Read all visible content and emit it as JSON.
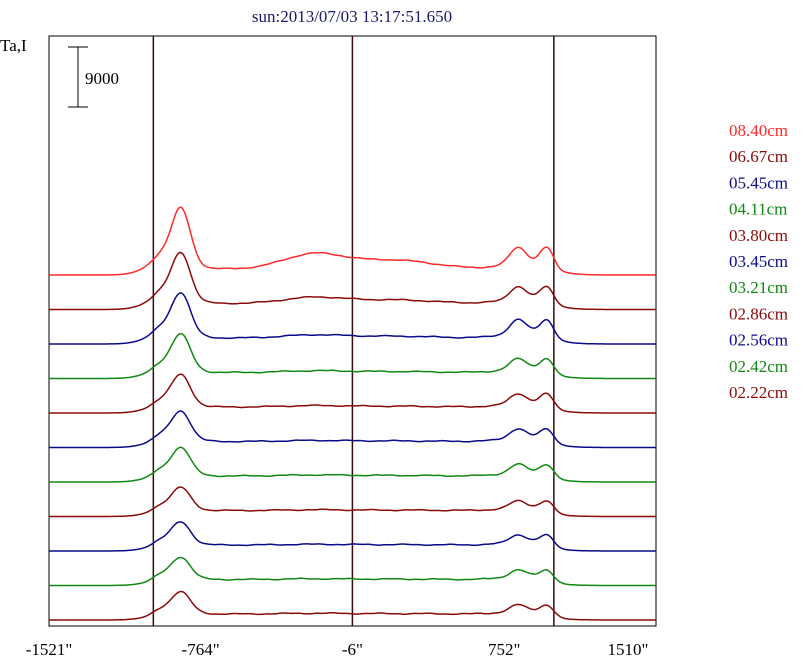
{
  "chart_data": {
    "type": "line",
    "title": "sun:2013/07/03 13:17:51.650",
    "ylabel": "Ta,I",
    "xlabel": "",
    "xlim": [
      -1521,
      1510
    ],
    "x_ticks": [
      "-1521\"",
      "-764\"",
      "-6\"",
      "752\"",
      "1510\""
    ],
    "vertical_lines": [
      -1000,
      -6,
      1000
    ],
    "scale_bar_label": "9000",
    "grid": false,
    "legend_placement": "right",
    "series": [
      {
        "name": "08.40cm",
        "color": "#ff2a2a",
        "peak_left": 9800,
        "peak_right": 4200,
        "hump": 2200,
        "offset": 11
      },
      {
        "name": "06.67cm",
        "color": "#8b0a0a",
        "peak_left": 8200,
        "peak_right": 3300,
        "hump": 900,
        "offset": 10
      },
      {
        "name": "05.45cm",
        "color": "#0a0a8b",
        "peak_left": 7300,
        "peak_right": 3600,
        "hump": 450,
        "offset": 9
      },
      {
        "name": "04.11cm",
        "color": "#118811",
        "peak_left": 6200,
        "peak_right": 2700,
        "hump": 250,
        "offset": 8
      },
      {
        "name": "03.80cm",
        "color": "#8b0a0a",
        "peak_left": 5200,
        "peak_right": 2600,
        "hump": 200,
        "offset": 7
      },
      {
        "name": "03.45cm",
        "color": "#0a0a8b",
        "peak_left": 4900,
        "peak_right": 2500,
        "hump": 150,
        "offset": 6
      },
      {
        "name": "03.21cm",
        "color": "#118811",
        "peak_left": 4600,
        "peak_right": 2300,
        "hump": 150,
        "offset": 5
      },
      {
        "name": "02.86cm",
        "color": "#8b0a0a",
        "peak_left": 3700,
        "peak_right": 1900,
        "hump": 100,
        "offset": 4
      },
      {
        "name": "02.56cm",
        "color": "#0a0a8b",
        "peak_left": 3700,
        "peak_right": 2000,
        "hump": 100,
        "offset": 3
      },
      {
        "name": "02.42cm",
        "color": "#118811",
        "peak_left": 3600,
        "peak_right": 1900,
        "hump": 100,
        "offset": 2
      },
      {
        "name": "02.22cm",
        "color": "#8b0a0a",
        "peak_left": 3600,
        "peak_right": 1800,
        "hump": 100,
        "offset": 1
      }
    ]
  }
}
